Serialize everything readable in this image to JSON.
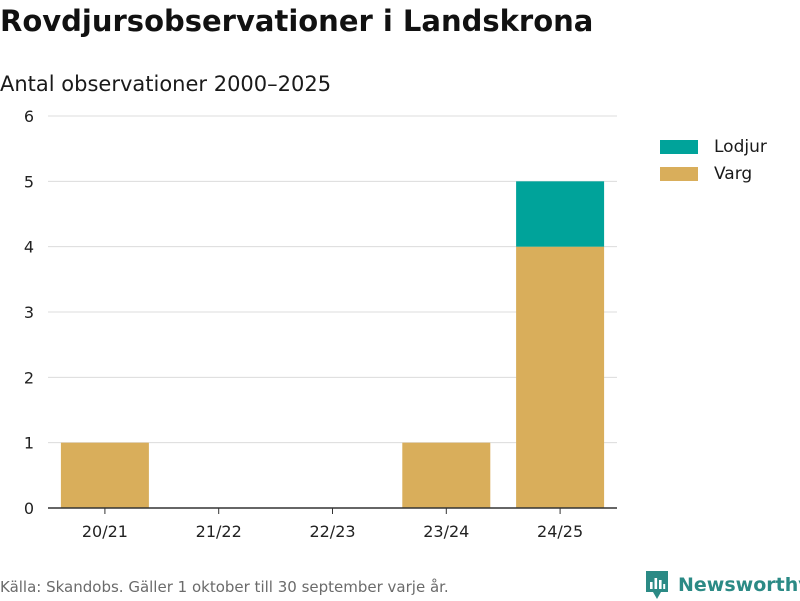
{
  "chart_data": {
    "type": "bar",
    "stacked": true,
    "title": "Rovdjursobservationer i Landskrona",
    "subtitle": "Antal observationer 2000–2025",
    "categories": [
      "20/21",
      "21/22",
      "22/23",
      "23/24",
      "24/25"
    ],
    "series": [
      {
        "name": "Varg",
        "values": [
          1,
          0,
          0,
          1,
          4
        ],
        "color": "#d9ae5b"
      },
      {
        "name": "Lodjur",
        "values": [
          0,
          0,
          0,
          0,
          1
        ],
        "color": "#00a39a"
      }
    ],
    "legend_order": [
      "Lodjur",
      "Varg"
    ],
    "xlabel": "",
    "ylabel": "",
    "ylim": [
      0,
      6
    ],
    "yticks": [
      0,
      1,
      2,
      3,
      4,
      5,
      6
    ],
    "grid": true,
    "legend": "top-right"
  },
  "legend": {
    "items": [
      {
        "label": "Lodjur",
        "color": "#00a39a"
      },
      {
        "label": "Varg",
        "color": "#d9ae5b"
      }
    ]
  },
  "footer": {
    "source": "Källa: Skandobs. Gäller 1 oktober till 30 september varje år."
  },
  "brand": {
    "name": "Newsworthy",
    "icon": "newsworthy-logo-icon",
    "color": "#2b8a85"
  }
}
